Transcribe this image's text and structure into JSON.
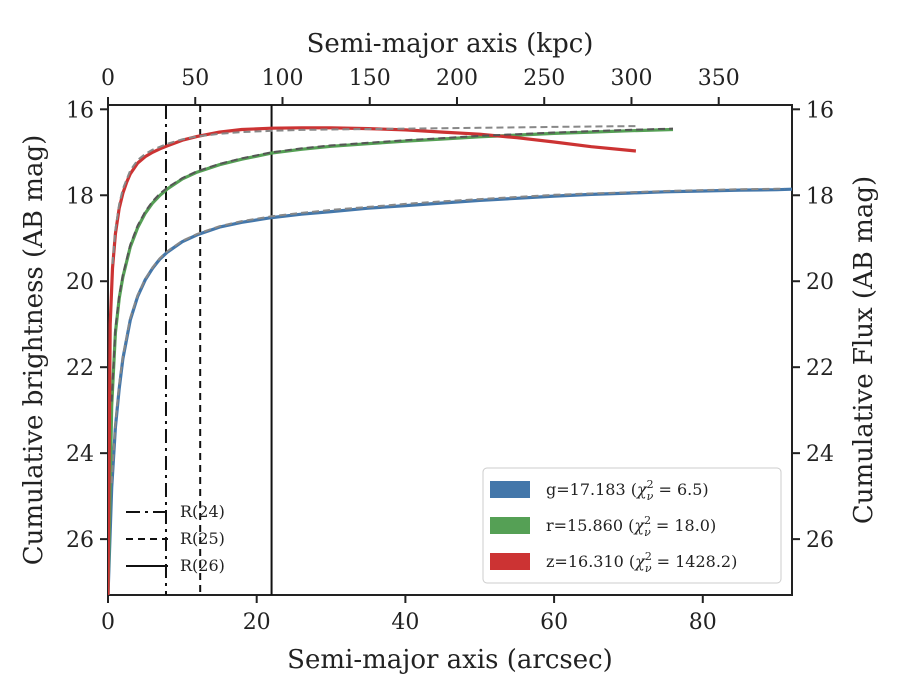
{
  "chart_data": {
    "type": "line",
    "xlabel": "Semi-major axis (arcsec)",
    "ylabel_left": "Cumulative brightness (AB mag)",
    "ylabel_right": "Cumulative Flux (AB mag)",
    "xlabel_top": "Semi-major axis (kpc)",
    "xlim": [
      0,
      92
    ],
    "ylim": [
      27.3,
      15.9
    ],
    "top_xlim": [
      0,
      392
    ],
    "x_ticks": [
      0,
      20,
      40,
      60,
      80
    ],
    "y_ticks": [
      16,
      18,
      20,
      22,
      24,
      26
    ],
    "top_x_ticks": [
      0,
      50,
      100,
      150,
      200,
      250,
      300,
      350
    ],
    "reference_lines": [
      {
        "label": "R(24)",
        "x": 7.8,
        "style": "dashdot"
      },
      {
        "label": "R(25)",
        "x": 12.4,
        "style": "dashed"
      },
      {
        "label": "R(26)",
        "x": 22.0,
        "style": "solid"
      }
    ],
    "series": [
      {
        "name": "g=17.183 ($\\chi^2_\\nu=6.5$)",
        "legend_prefix": "g=17.183 (",
        "legend_chi": "χ",
        "legend_sup": "2",
        "legend_sub": "ν",
        "legend_suffix": " = 6.5)",
        "color": "#4477aa",
        "x": [
          0.0,
          0.5,
          1,
          1.5,
          2,
          3,
          4,
          5,
          6,
          7,
          8,
          10,
          12,
          15,
          18,
          22,
          26,
          30,
          35,
          40,
          45,
          50,
          55,
          60,
          65,
          70,
          75,
          80,
          85,
          90,
          92
        ],
        "y": [
          27.3,
          24.8,
          23.4,
          22.5,
          21.8,
          20.9,
          20.35,
          19.97,
          19.7,
          19.48,
          19.32,
          19.08,
          18.92,
          18.74,
          18.63,
          18.52,
          18.44,
          18.38,
          18.3,
          18.24,
          18.18,
          18.12,
          18.07,
          18.02,
          17.98,
          17.95,
          17.92,
          17.9,
          17.88,
          17.87,
          17.86
        ]
      },
      {
        "name": "r=15.860 ($\\chi^2_\\nu=18.0$)",
        "legend_prefix": "r=15.860 (",
        "legend_chi": "χ",
        "legend_sup": "2",
        "legend_sub": "ν",
        "legend_suffix": " = 18.0)",
        "color": "#55a055",
        "x": [
          0.0,
          0.5,
          1,
          1.5,
          2,
          3,
          4,
          5,
          6,
          7,
          8,
          10,
          12,
          15,
          18,
          22,
          26,
          30,
          35,
          40,
          45,
          50,
          55,
          60,
          65,
          70,
          76
        ],
        "y": [
          27.3,
          22.9,
          21.2,
          20.4,
          19.9,
          19.2,
          18.75,
          18.42,
          18.18,
          18.0,
          17.85,
          17.62,
          17.46,
          17.29,
          17.16,
          17.02,
          16.93,
          16.86,
          16.8,
          16.74,
          16.69,
          16.64,
          16.6,
          16.56,
          16.53,
          16.5,
          16.47
        ]
      },
      {
        "name": "z=16.310 ($\\chi^2_\\nu=1428.2$)",
        "legend_prefix": "z=16.310 (",
        "legend_chi": "χ",
        "legend_sup": "2",
        "legend_sub": "ν",
        "legend_suffix": " = 1428.2)",
        "color": "#cc3333",
        "x": [
          0.0,
          0.3,
          0.6,
          1,
          1.5,
          2,
          2.5,
          3,
          4,
          5,
          6,
          7,
          8,
          10,
          12,
          15,
          18,
          22,
          26,
          30,
          35,
          40,
          45,
          50,
          55,
          60,
          65,
          71
        ],
        "y": [
          27.3,
          21.0,
          19.7,
          18.9,
          18.3,
          17.95,
          17.7,
          17.5,
          17.25,
          17.1,
          17.0,
          16.92,
          16.85,
          16.72,
          16.63,
          16.53,
          16.47,
          16.44,
          16.43,
          16.43,
          16.45,
          16.48,
          16.53,
          16.58,
          16.66,
          16.76,
          16.87,
          16.97
        ]
      }
    ],
    "models": [
      {
        "series": "g",
        "color": "#888888",
        "x": [
          0.5,
          1,
          1.5,
          2,
          3,
          4,
          5,
          6,
          7,
          8,
          10,
          12,
          15,
          18,
          22,
          26,
          30,
          35,
          40,
          45,
          50,
          55,
          60,
          65,
          70,
          75,
          80,
          85,
          90,
          91
        ],
        "y": [
          24.7,
          23.3,
          22.4,
          21.75,
          20.85,
          20.32,
          19.95,
          19.68,
          19.46,
          19.3,
          19.06,
          18.9,
          18.72,
          18.6,
          18.49,
          18.41,
          18.34,
          18.27,
          18.2,
          18.14,
          18.09,
          18.04,
          17.99,
          17.96,
          17.93,
          17.9,
          17.88,
          17.86,
          17.85,
          17.85
        ]
      },
      {
        "series": "r",
        "color": "#555555",
        "x": [
          0.5,
          1,
          1.5,
          2,
          3,
          4,
          5,
          6,
          7,
          8,
          10,
          12,
          15,
          18,
          22,
          26,
          30,
          35,
          40,
          45,
          50,
          55,
          60,
          65,
          70,
          76
        ],
        "y": [
          22.8,
          21.1,
          20.35,
          19.85,
          19.15,
          18.7,
          18.38,
          18.14,
          17.96,
          17.82,
          17.6,
          17.44,
          17.27,
          17.14,
          17.0,
          16.91,
          16.84,
          16.78,
          16.72,
          16.67,
          16.62,
          16.58,
          16.54,
          16.51,
          16.48,
          16.45
        ]
      },
      {
        "series": "z",
        "color": "#888888",
        "x": [
          0.6,
          1,
          1.5,
          2,
          3,
          4,
          5,
          6,
          8,
          10,
          12,
          15,
          18,
          22,
          26,
          30,
          35,
          40,
          45,
          50,
          55,
          60,
          65,
          71
        ],
        "y": [
          19.6,
          18.8,
          18.2,
          17.85,
          17.42,
          17.18,
          17.04,
          16.94,
          16.8,
          16.7,
          16.63,
          16.57,
          16.53,
          16.5,
          16.48,
          16.47,
          16.46,
          16.45,
          16.44,
          16.43,
          16.42,
          16.41,
          16.4,
          16.39
        ]
      }
    ]
  }
}
